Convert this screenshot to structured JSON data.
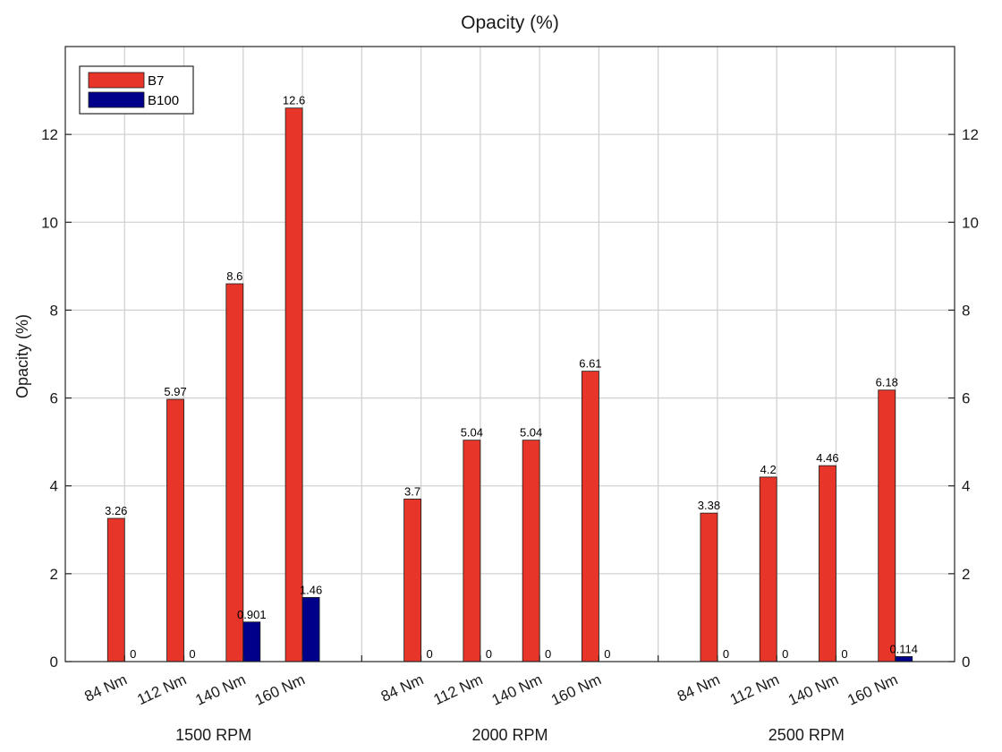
{
  "chart_data": {
    "type": "bar",
    "title": "Opacity (%)",
    "ylabel": "Opacity (%)",
    "xlabel": "",
    "ylim": [
      0,
      14
    ],
    "yticks": [
      0,
      2,
      4,
      6,
      8,
      10,
      12
    ],
    "groups": [
      "1500 RPM",
      "2000 RPM",
      "2500 RPM"
    ],
    "categories": [
      "84 Nm",
      "112 Nm",
      "140 Nm",
      "160 Nm"
    ],
    "grid": true,
    "legend_position": "top-left",
    "series": [
      {
        "name": "B7",
        "color": "#e8352a",
        "values": [
          [
            3.26,
            5.97,
            8.6,
            12.6
          ],
          [
            3.7,
            5.04,
            5.04,
            6.61
          ],
          [
            3.38,
            4.2,
            4.46,
            6.18
          ]
        ],
        "labels": [
          [
            "3.26",
            "5.97",
            "8.6",
            "12.6"
          ],
          [
            "3.7",
            "5.04",
            "5.04",
            "6.61"
          ],
          [
            "3.38",
            "4.2",
            "4.46",
            "6.18"
          ]
        ]
      },
      {
        "name": "B100",
        "color": "#00008a",
        "values": [
          [
            0,
            0,
            0.901,
            1.46
          ],
          [
            0,
            0,
            0,
            0
          ],
          [
            0,
            0,
            0,
            0.114
          ]
        ],
        "labels": [
          [
            "0",
            "0",
            "0.901",
            "1.46"
          ],
          [
            "0",
            "0",
            "0",
            "0"
          ],
          [
            "0",
            "0",
            "0",
            "0.114"
          ]
        ]
      }
    ]
  }
}
